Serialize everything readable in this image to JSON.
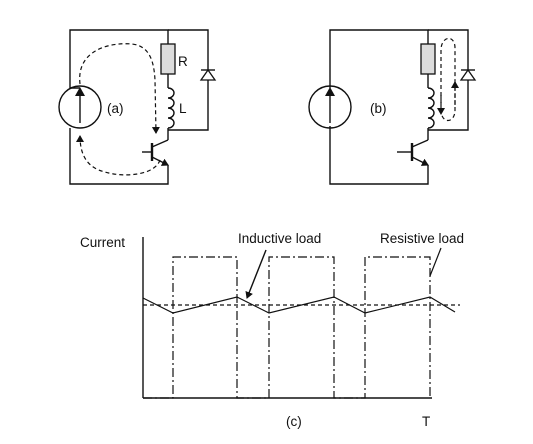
{
  "circuit_a": {
    "caption": "(a)",
    "resistor_label": "R",
    "inductor_label": "L"
  },
  "circuit_b": {
    "caption": "(b)"
  },
  "graph_c": {
    "caption": "(c)",
    "y_axis_label": "Current",
    "x_axis_end_label": "T",
    "inductive_label": "Inductive load",
    "resistive_label": "Resistive load"
  }
}
